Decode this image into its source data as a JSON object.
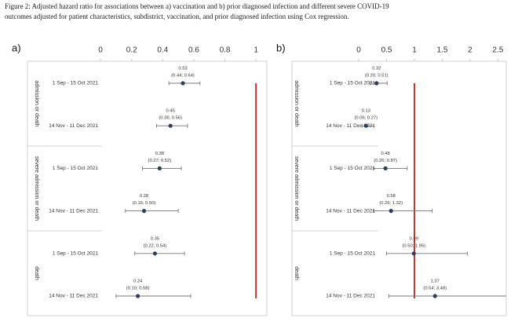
{
  "caption": "Figure 2: Adjusted hazard ratio for associations between a) vaccination and b) prior diagnosed infection and different severe COVID-19 outcomes adjusted for patient characteristics, subdistrict, vaccination, and prior diagnosed infection using Cox regression.",
  "chart_data": [
    {
      "type": "forest",
      "label": "a)",
      "xlim": [
        -0.47,
        1.07
      ],
      "xticks": [
        0,
        0.2,
        0.4,
        0.6,
        0.8,
        1
      ],
      "reference_line": 1,
      "reference_color": "#c0392b",
      "color": "#2e3f5c",
      "groups": [
        {
          "name": "admission or death",
          "categories": [
            "1 Sep - 15 Oct 2021",
            "14 Nov - 11 Dec 2021"
          ],
          "values": [
            0.53,
            0.45
          ],
          "lower": [
            0.44,
            0.36
          ],
          "upper": [
            0.64,
            0.56
          ],
          "interval_labels": [
            "(0.44; 0.64)",
            "(0.36; 0.56)"
          ]
        },
        {
          "name": "severe admission or death",
          "categories": [
            "1 Sep - 15 Oct 2021",
            "14 Nov - 11 Dec 2021"
          ],
          "values": [
            0.38,
            0.28
          ],
          "lower": [
            0.27,
            0.16
          ],
          "upper": [
            0.52,
            0.5
          ],
          "interval_labels": [
            "(0.27; 0.52)",
            "(0.16; 0.50)"
          ]
        },
        {
          "name": "death",
          "categories": [
            "1 Sep - 15 Oct 2021",
            "14 Nov - 11 Dec 2021"
          ],
          "values": [
            0.35,
            0.24
          ],
          "lower": [
            0.22,
            0.1
          ],
          "upper": [
            0.54,
            0.58
          ],
          "interval_labels": [
            "(0.22; 0.54)",
            "(0.10; 0.58)"
          ]
        }
      ]
    },
    {
      "type": "forest",
      "label": "b)",
      "xlim": [
        -1.2,
        2.65
      ],
      "xticks": [
        0,
        0.5,
        1,
        1.5,
        2,
        2.5
      ],
      "reference_line": 1,
      "reference_color": "#c0392b",
      "color": "#2e3f5c",
      "groups": [
        {
          "name": "admission or death",
          "categories": [
            "1 Sep - 15 Oct 2021",
            "14 Nov - 11 Dec 2021"
          ],
          "values": [
            0.32,
            0.13
          ],
          "lower": [
            0.2,
            0.06
          ],
          "upper": [
            0.51,
            0.27
          ],
          "interval_labels": [
            "(0.20; 0.51)",
            "(0.06; 0.27)"
          ]
        },
        {
          "name": "severe admission or death",
          "categories": [
            "1 Sep - 15 Oct 2021",
            "14 Nov - 11 Dec 2021"
          ],
          "values": [
            0.48,
            0.58
          ],
          "lower": [
            0.26,
            0.26
          ],
          "upper": [
            0.87,
            1.32
          ],
          "interval_labels": [
            "(0.26; 0.87)",
            "(0.26; 1.32)"
          ]
        },
        {
          "name": "death",
          "categories": [
            "1 Sep - 15 Oct 2021",
            "14 Nov - 11 Dec 2021"
          ],
          "values": [
            0.99,
            1.37
          ],
          "lower": [
            0.5,
            0.54
          ],
          "upper": [
            1.95,
            3.48
          ],
          "interval_labels": [
            "(0.50; 1.95)",
            "(0.54; 3.48)"
          ]
        }
      ]
    }
  ]
}
